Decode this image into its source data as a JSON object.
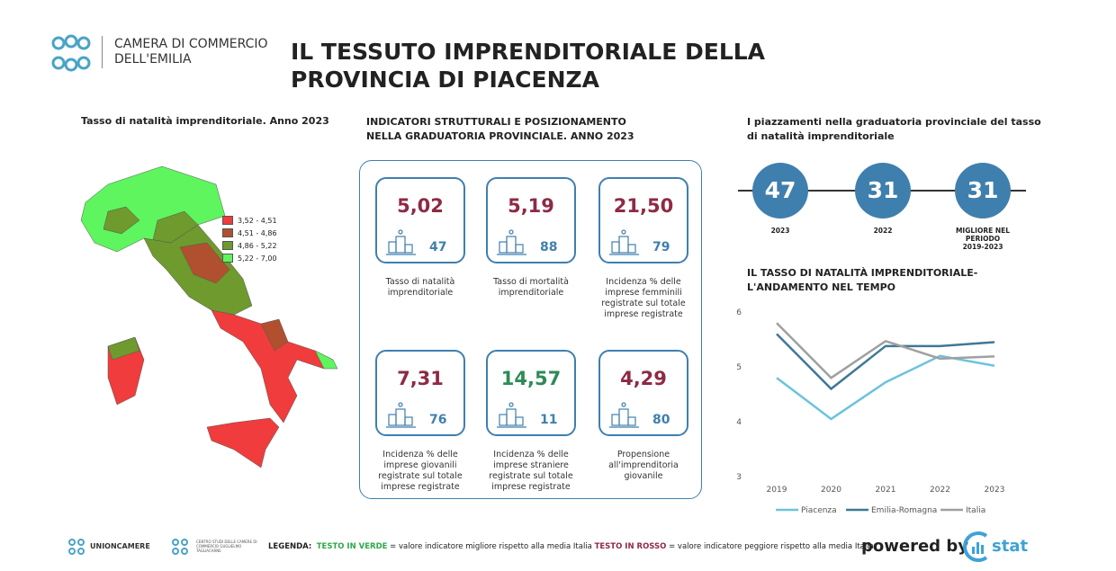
{
  "header": {
    "logo_text": [
      "CAMERA DI COMMERCIO",
      "DELL'EMILIA"
    ],
    "title": "IL TESSUTO IMPRENDITORIALE DELLA PROVINCIA DI PIACENZA"
  },
  "map": {
    "title": "Tasso di natalità imprenditoriale. Anno 2023",
    "legend": [
      {
        "label": "3,52 - 4,51",
        "color": "#f03c3c"
      },
      {
        "label": "4,51 - 4,86",
        "color": "#b0502e"
      },
      {
        "label": "4,86 - 5,22",
        "color": "#6e9a2e"
      },
      {
        "label": "5,22 - 7,00",
        "color": "#5ef55e"
      }
    ]
  },
  "indicators": {
    "title": "INDICATORI STRUTTURALI E POSIZIONAMENTO NELLA GRADUATORIA PROVINCIALE. ANNO 2023",
    "cards": [
      {
        "value": "5,02",
        "rank": 47,
        "label": "Tasso di natalità imprenditoriale",
        "color": "#8e2a45"
      },
      {
        "value": "5,19",
        "rank": 88,
        "label": "Tasso di mortalità imprenditoriale",
        "color": "#8e2a45"
      },
      {
        "value": "21,50",
        "rank": 79,
        "label": "Incidenza % delle imprese femminili registrate sul totale imprese registrate",
        "color": "#8e2a45"
      },
      {
        "value": "7,31",
        "rank": 76,
        "label": "Incidenza % delle imprese giovanili registrate sul totale imprese registrate",
        "color": "#8e2a45"
      },
      {
        "value": "14,57",
        "rank": 11,
        "label": "Incidenza % delle imprese straniere registrate sul totale imprese registrate",
        "color": "#2e8b57"
      },
      {
        "value": "4,29",
        "rank": 80,
        "label": "Propensione all'imprenditoria giovanile",
        "color": "#8e2a45"
      }
    ]
  },
  "rankings": {
    "title": "I piazzamenti nella graduatoria provinciale del tasso di natalità imprenditoriale",
    "items": [
      {
        "rank": 47,
        "label": [
          "2023"
        ]
      },
      {
        "rank": 31,
        "label": [
          "2022"
        ]
      },
      {
        "rank": 31,
        "label": [
          "MIGLIORE NEL",
          "PERIODO",
          "2019-2023"
        ]
      }
    ]
  },
  "chart_data": {
    "type": "line",
    "title": "IL TASSO DI NATALITÀ IMPRENDITORIALE- L'ANDAMENTO NEL TEMPO",
    "categories": [
      "2019",
      "2020",
      "2021",
      "2022",
      "2023"
    ],
    "series": [
      {
        "name": "Piacenza",
        "color": "#6cc3dc",
        "values": [
          4.8,
          4.05,
          4.72,
          5.2,
          5.02
        ]
      },
      {
        "name": "Emilia-Romagna",
        "color": "#3f7896",
        "values": [
          5.6,
          4.6,
          5.38,
          5.38,
          5.45
        ]
      },
      {
        "name": "Italia",
        "color": "#a0a0a0",
        "values": [
          5.8,
          4.8,
          5.47,
          5.15,
          5.19
        ]
      }
    ],
    "ylim": [
      3,
      6
    ],
    "yticks": [
      3,
      4,
      5,
      6
    ],
    "grid": false
  },
  "footer": {
    "unioncamere": "UNIONCAMERE",
    "tagliacarne": "CENTRO STUDI DELLE CAMERE DI COMMERCIO GUGLIELMO TAGLIACARNE",
    "legend_label": "LEGENDA:",
    "green_text": "TESTO IN VERDE",
    "green_desc": "= valore indicatore migliore rispetto alla media Italia",
    "red_text": "TESTO IN ROSSO",
    "red_desc": "= valore indicatore peggiore rispetto alla media Italia",
    "powered": "powered by",
    "brand": "stat"
  }
}
